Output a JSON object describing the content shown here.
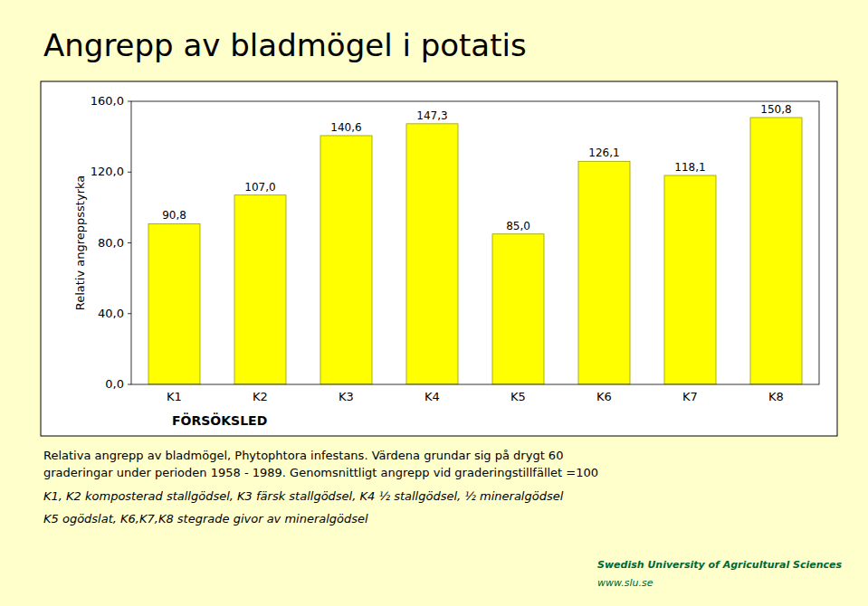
{
  "chart_data": {
    "type": "bar",
    "title": "Angrepp av bladmögel i potatis",
    "categories": [
      "K1",
      "K2",
      "K3",
      "K4",
      "K5",
      "K6",
      "K7",
      "K8"
    ],
    "values": [
      90.8,
      107.0,
      140.6,
      147.3,
      85.0,
      126.1,
      118.1,
      150.8
    ],
    "value_labels": [
      "90,8",
      "107,0",
      "140,6",
      "147,3",
      "85,0",
      "126,1",
      "118,1",
      "150,8"
    ],
    "data_labels": true,
    "color": "#FFFF00",
    "xlabel": "FÖRSÖKSLED",
    "ylabel": "Relativ angreppsstyrka",
    "ylim": [
      0,
      160
    ],
    "yticks": [
      {
        "value": 0,
        "label": "0,0"
      },
      {
        "value": 40,
        "label": "40,0"
      },
      {
        "value": 80,
        "label": "80,0"
      },
      {
        "value": 120,
        "label": "120,0"
      },
      {
        "value": 160,
        "label": "160,0"
      }
    ],
    "grid": false,
    "annotations": [
      "Relativa angrepp av bladmögel, Phytophtora infestans. Värdena grundar sig på drygt 60",
      "graderingar under perioden 1958 - 1989. Genomsnittligt angrepp vid graderingstillfället =100",
      "K1, K2 komposterad stallgödsel, K3 färsk stallgödsel, K4 ½ stallgödsel, ½ mineralgödsel",
      "K5 ogödslat, K6,K7,K8 stegrade givor av mineralgödsel",
      "Swedish University of Agricultural Sciences",
      "www.slu.se"
    ]
  }
}
